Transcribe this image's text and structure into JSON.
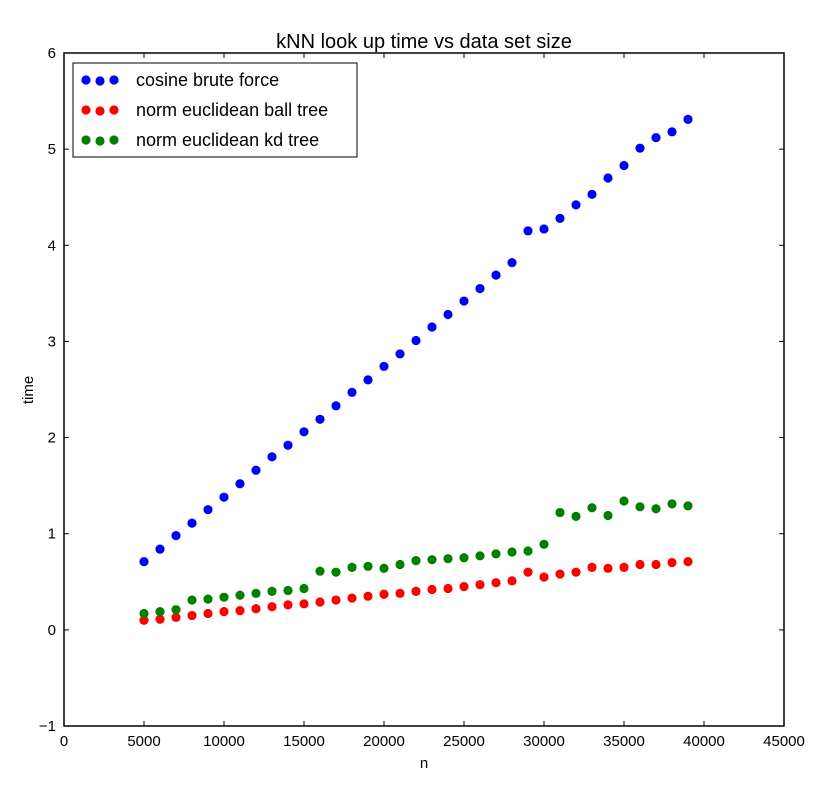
{
  "chart_data": {
    "type": "scatter",
    "title": "kNN look up time vs data set size",
    "xlabel": "n",
    "ylabel": "time",
    "xlim": [
      0,
      45000
    ],
    "ylim": [
      -1,
      6
    ],
    "xticks": [
      0,
      5000,
      10000,
      15000,
      20000,
      25000,
      30000,
      35000,
      40000,
      45000
    ],
    "yticks": [
      -1,
      0,
      1,
      2,
      3,
      4,
      5,
      6
    ],
    "xtick_labels": [
      "0",
      "5000",
      "10000",
      "15000",
      "20000",
      "25000",
      "30000",
      "35000",
      "40000",
      "45000"
    ],
    "ytick_labels": [
      "−1",
      "0",
      "1",
      "2",
      "3",
      "4",
      "5",
      "6"
    ],
    "grid": false,
    "legend_position": "top-left",
    "x": [
      5000,
      6000,
      7000,
      8000,
      9000,
      10000,
      11000,
      12000,
      13000,
      14000,
      15000,
      16000,
      17000,
      18000,
      19000,
      20000,
      21000,
      22000,
      23000,
      24000,
      25000,
      26000,
      27000,
      28000,
      29000,
      30000,
      31000,
      32000,
      33000,
      34000,
      35000,
      36000,
      37000,
      38000,
      39000
    ],
    "series": [
      {
        "name": "cosine brute force",
        "color": "#0000ff",
        "values": [
          0.71,
          0.84,
          0.98,
          1.11,
          1.25,
          1.38,
          1.52,
          1.66,
          1.8,
          1.92,
          2.06,
          2.19,
          2.33,
          2.47,
          2.6,
          2.74,
          2.87,
          3.01,
          3.15,
          3.28,
          3.42,
          3.55,
          3.69,
          3.82,
          4.15,
          4.17,
          4.28,
          4.42,
          4.53,
          4.7,
          4.83,
          5.01,
          5.12,
          5.18,
          5.31
        ]
      },
      {
        "name": "norm euclidean ball tree",
        "color": "#ff0000",
        "values": [
          0.1,
          0.11,
          0.13,
          0.15,
          0.17,
          0.19,
          0.2,
          0.22,
          0.24,
          0.26,
          0.27,
          0.29,
          0.31,
          0.33,
          0.35,
          0.37,
          0.38,
          0.4,
          0.42,
          0.43,
          0.45,
          0.47,
          0.49,
          0.51,
          0.6,
          0.55,
          0.58,
          0.6,
          0.65,
          0.64,
          0.65,
          0.68,
          0.68,
          0.7,
          0.71
        ]
      },
      {
        "name": "norm euclidean kd tree",
        "color": "#008000",
        "values": [
          0.17,
          0.19,
          0.21,
          0.31,
          0.32,
          0.34,
          0.36,
          0.38,
          0.4,
          0.41,
          0.43,
          0.61,
          0.6,
          0.65,
          0.66,
          0.64,
          0.68,
          0.72,
          0.73,
          0.74,
          0.75,
          0.77,
          0.79,
          0.81,
          0.82,
          0.89,
          1.22,
          1.18,
          1.27,
          1.19,
          1.34,
          1.28,
          1.26,
          1.31,
          1.29
        ]
      }
    ]
  }
}
